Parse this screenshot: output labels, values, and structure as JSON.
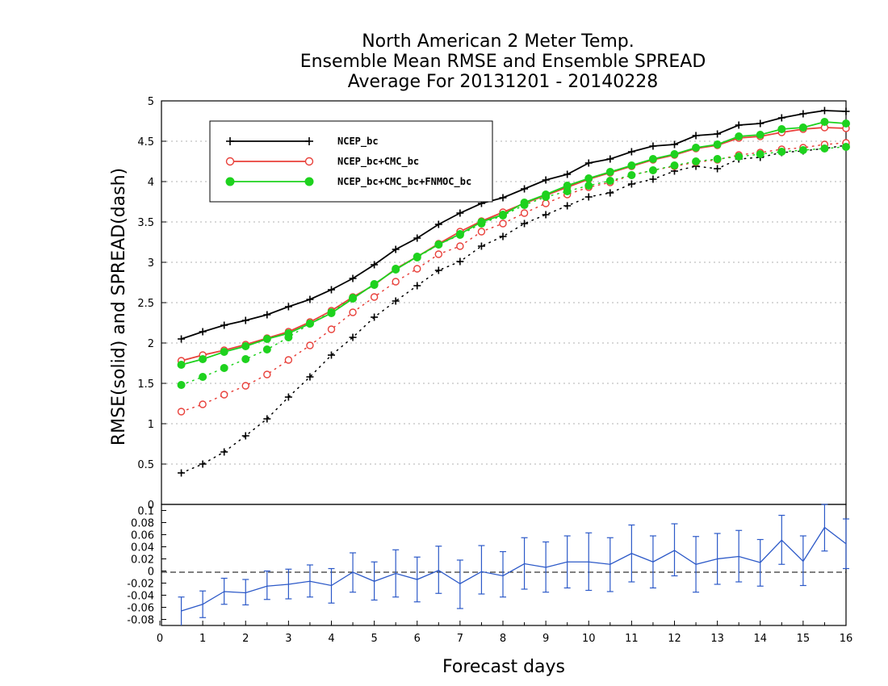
{
  "title_lines": [
    "North American 2 Meter Temp.",
    "Ensemble Mean RMSE and Ensemble SPREAD",
    "Average For 20131201 - 20140228"
  ],
  "chart_data": [
    {
      "type": "line",
      "panel": "top",
      "title": "North American 2 Meter Temp. Ensemble Mean RMSE and Ensemble SPREAD Average For 20131201 - 20140228",
      "ylabel": "RMSE(solid) and SPREAD(dash)",
      "xlabel": "",
      "xlim": [
        0,
        16
      ],
      "ylim": [
        0,
        5
      ],
      "yticks": [
        "0",
        "0.5",
        "1",
        "1.5",
        "2",
        "2.5",
        "3",
        "3.5",
        "4",
        "4.5",
        "5"
      ],
      "grid": true,
      "legend_position": "top-left",
      "x": [
        0.5,
        1,
        1.5,
        2,
        2.5,
        3,
        3.5,
        4,
        4.5,
        5,
        5.5,
        6,
        6.5,
        7,
        7.5,
        8,
        8.5,
        9,
        9.5,
        10,
        10.5,
        11,
        11.5,
        12,
        12.5,
        13,
        13.5,
        14,
        14.5,
        15,
        15.5,
        16
      ],
      "series": [
        {
          "name": "NCEP_bc",
          "color": "#000000",
          "marker": "plus",
          "rmse": [
            2.05,
            2.14,
            2.22,
            2.28,
            2.35,
            2.45,
            2.54,
            2.66,
            2.8,
            2.97,
            3.16,
            3.3,
            3.47,
            3.61,
            3.73,
            3.8,
            3.91,
            4.02,
            4.09,
            4.23,
            4.28,
            4.37,
            4.44,
            4.46,
            4.57,
            4.59,
            4.7,
            4.72,
            4.79,
            4.84,
            4.88,
            4.87
          ],
          "spread": [
            0.39,
            0.5,
            0.65,
            0.85,
            1.06,
            1.33,
            1.58,
            1.85,
            2.07,
            2.32,
            2.52,
            2.71,
            2.9,
            3.01,
            3.2,
            3.32,
            3.48,
            3.59,
            3.7,
            3.81,
            3.86,
            3.97,
            4.03,
            4.13,
            4.19,
            4.16,
            4.28,
            4.3,
            4.36,
            4.38,
            4.41,
            4.45
          ]
        },
        {
          "name": "NCEP_bc+CMC_bc",
          "color": "#e8403a",
          "marker": "open-circle",
          "rmse": [
            1.78,
            1.85,
            1.91,
            1.98,
            2.06,
            2.14,
            2.26,
            2.4,
            2.57,
            2.72,
            2.92,
            3.07,
            3.23,
            3.38,
            3.51,
            3.62,
            3.73,
            3.83,
            3.93,
            4.03,
            4.11,
            4.19,
            4.27,
            4.33,
            4.41,
            4.45,
            4.54,
            4.56,
            4.61,
            4.65,
            4.67,
            4.66
          ],
          "spread": [
            1.15,
            1.24,
            1.36,
            1.47,
            1.61,
            1.79,
            1.97,
            2.17,
            2.38,
            2.57,
            2.76,
            2.92,
            3.1,
            3.2,
            3.38,
            3.48,
            3.61,
            3.73,
            3.84,
            3.93,
            3.99,
            4.08,
            4.14,
            4.19,
            4.24,
            4.27,
            4.33,
            4.36,
            4.4,
            4.42,
            4.46,
            4.48
          ]
        },
        {
          "name": "NCEP_bc+CMC_bc+FNMOC_bc",
          "color": "#1ed21e",
          "marker": "filled-circle",
          "rmse": [
            1.73,
            1.8,
            1.89,
            1.96,
            2.05,
            2.12,
            2.24,
            2.37,
            2.55,
            2.73,
            2.91,
            3.07,
            3.22,
            3.35,
            3.5,
            3.59,
            3.74,
            3.84,
            3.95,
            4.04,
            4.12,
            4.2,
            4.28,
            4.34,
            4.42,
            4.46,
            4.56,
            4.58,
            4.65,
            4.67,
            4.74,
            4.72
          ],
          "spread": [
            1.48,
            1.58,
            1.69,
            1.8,
            1.92,
            2.07,
            2.24,
            2.38,
            2.56,
            2.72,
            2.92,
            3.06,
            3.22,
            3.34,
            3.48,
            3.58,
            3.71,
            3.81,
            3.88,
            3.95,
            4.01,
            4.08,
            4.14,
            4.2,
            4.25,
            4.28,
            4.31,
            4.34,
            4.37,
            4.39,
            4.41,
            4.43
          ]
        }
      ]
    },
    {
      "type": "line",
      "panel": "bottom",
      "xlabel": "Forecast days",
      "ylabel": "",
      "xlim": [
        0,
        16
      ],
      "xticks": [
        "0",
        "1",
        "2",
        "3",
        "4",
        "5",
        "6",
        "7",
        "8",
        "9",
        "10",
        "11",
        "12",
        "13",
        "14",
        "15",
        "16"
      ],
      "ylim": [
        -0.09,
        0.11
      ],
      "yticks": [
        "-0.08",
        "-0.06",
        "-0.04",
        "-0.02",
        "0",
        "0.02",
        "0.04",
        "0.06",
        "0.08",
        "0.1"
      ],
      "zero_line": 0,
      "color": "#2c59c8",
      "error_bars": true,
      "x": [
        0.5,
        1,
        1.5,
        2,
        2.5,
        3,
        3.5,
        4,
        4.5,
        5,
        5.5,
        6,
        6.5,
        7,
        7.5,
        8,
        8.5,
        9,
        9.5,
        10,
        10.5,
        11,
        11.5,
        12,
        12.5,
        13,
        13.5,
        14,
        14.5,
        15,
        15.5,
        16
      ],
      "values": [
        -0.066,
        -0.055,
        -0.034,
        -0.036,
        -0.025,
        -0.022,
        -0.017,
        -0.024,
        -0.002,
        -0.017,
        -0.004,
        -0.014,
        0.001,
        -0.021,
        -0.001,
        -0.008,
        0.012,
        0.006,
        0.015,
        0.015,
        0.011,
        0.029,
        0.015,
        0.034,
        0.011,
        0.02,
        0.024,
        0.014,
        0.051,
        0.016,
        0.072,
        0.045
      ],
      "lower": [
        -0.091,
        -0.077,
        -0.055,
        -0.056,
        -0.047,
        -0.046,
        -0.043,
        -0.053,
        -0.035,
        -0.048,
        -0.043,
        -0.051,
        -0.037,
        -0.062,
        -0.038,
        -0.043,
        -0.03,
        -0.035,
        -0.028,
        -0.032,
        -0.034,
        -0.018,
        -0.028,
        -0.008,
        -0.035,
        -0.022,
        -0.018,
        -0.025,
        0.011,
        -0.024,
        0.033,
        0.004
      ],
      "upper": [
        -0.043,
        -0.033,
        -0.012,
        -0.014,
        0.0,
        0.003,
        0.01,
        0.004,
        0.03,
        0.015,
        0.035,
        0.023,
        0.041,
        0.018,
        0.042,
        0.032,
        0.055,
        0.048,
        0.058,
        0.063,
        0.055,
        0.076,
        0.058,
        0.078,
        0.057,
        0.062,
        0.067,
        0.052,
        0.092,
        0.058,
        0.11,
        0.086
      ]
    }
  ]
}
